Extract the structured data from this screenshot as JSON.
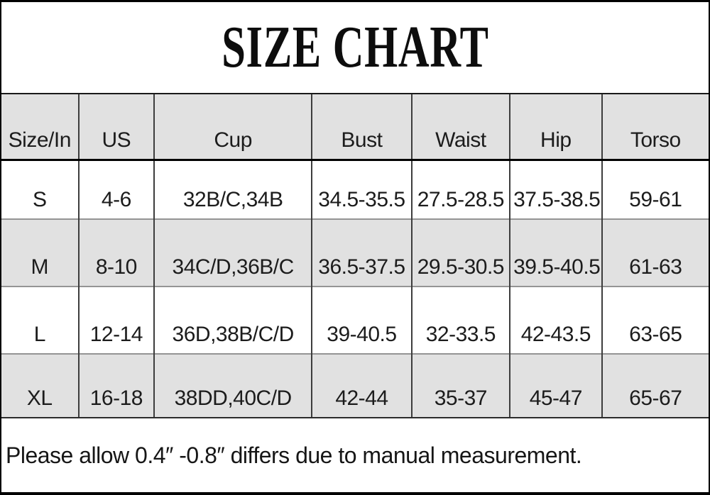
{
  "title": "SIZE CHART",
  "table": {
    "headers": [
      "Size/In",
      "US",
      "Cup",
      "Bust",
      "Waist",
      "Hip",
      "Torso"
    ],
    "rows": [
      [
        "S",
        "4-6",
        "32B/C,34B",
        "34.5-35.5",
        "27.5-28.5",
        "37.5-38.5",
        "59-61"
      ],
      [
        "M",
        "8-10",
        "34C/D,36B/C",
        "36.5-37.5",
        "29.5-30.5",
        "39.5-40.5",
        "61-63"
      ],
      [
        "L",
        "12-14",
        "36D,38B/C/D",
        "39-40.5",
        "32-33.5",
        "42-43.5",
        "63-65"
      ],
      [
        "XL",
        "16-18",
        "38DD,40C/D",
        "42-44",
        "35-37",
        "45-47",
        "65-67"
      ]
    ]
  },
  "note": "Please allow 0.4″ -0.8″ differs due to manual measurement.",
  "colors": {
    "background": "#ffffff",
    "row_shade": "#e1e1e1",
    "outer_border": "#000000",
    "column_line": "#3d3d3d",
    "row_line": "#949494",
    "text": "#1c1c1c"
  }
}
